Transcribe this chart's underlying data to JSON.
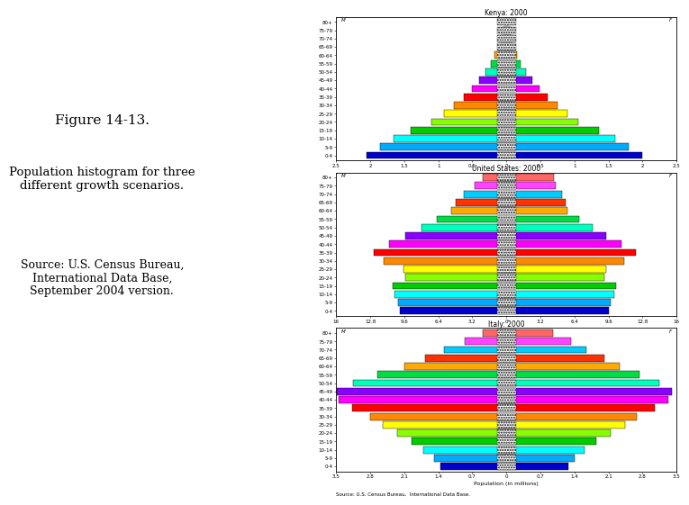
{
  "title1": "Kenya: 2000",
  "title2": "United States: 2000",
  "title3": "Italy: 2000",
  "xlabel": "Population (in millions)",
  "source_text": "Source: U.S. Census Bureau,  International Data Base.",
  "age_groups": [
    "0-4",
    "5-9",
    "10-14",
    "15-19",
    "20-24",
    "25-29",
    "30-34",
    "35-39",
    "40-44",
    "45-49",
    "50-54",
    "55-59",
    "60-64",
    "65-69",
    "70-74",
    "75-79",
    "80+"
  ],
  "bar_colors": [
    "#0000cc",
    "#00aaff",
    "#00ffff",
    "#00cc00",
    "#88ff00",
    "#ffff00",
    "#ff8800",
    "#ff0000",
    "#ff00ff",
    "#8800ff",
    "#00ffbb",
    "#00dd44",
    "#ffaa00",
    "#ff3300",
    "#00ccff",
    "#ff44ff",
    "#ff6666"
  ],
  "kenya_male": [
    2.05,
    1.85,
    1.65,
    1.4,
    1.1,
    0.92,
    0.77,
    0.63,
    0.51,
    0.4,
    0.31,
    0.23,
    0.17,
    0.12,
    0.085,
    0.055,
    0.028
  ],
  "kenya_female": [
    2.0,
    1.8,
    1.6,
    1.36,
    1.06,
    0.9,
    0.75,
    0.6,
    0.49,
    0.38,
    0.29,
    0.21,
    0.16,
    0.115,
    0.085,
    0.06,
    0.04
  ],
  "us_male": [
    10.0,
    10.2,
    10.5,
    10.7,
    9.5,
    9.7,
    11.5,
    12.5,
    11.0,
    9.5,
    8.0,
    6.5,
    5.2,
    4.8,
    4.0,
    3.0,
    2.2
  ],
  "us_female": [
    9.6,
    9.8,
    10.1,
    10.3,
    9.2,
    9.4,
    11.1,
    12.2,
    10.8,
    9.4,
    8.1,
    6.8,
    5.7,
    5.6,
    5.2,
    4.6,
    4.5
  ],
  "italy_male": [
    1.35,
    1.48,
    1.7,
    1.95,
    2.25,
    2.55,
    2.8,
    3.18,
    3.45,
    3.48,
    3.15,
    2.65,
    2.1,
    1.68,
    1.28,
    0.85,
    0.48
  ],
  "italy_female": [
    1.27,
    1.4,
    1.61,
    1.85,
    2.15,
    2.44,
    2.68,
    3.05,
    3.33,
    3.41,
    3.15,
    2.73,
    2.32,
    2.02,
    1.65,
    1.32,
    0.95
  ],
  "kenya_xlim": 2.5,
  "us_xlim": 16.0,
  "italy_xlim": 3.5,
  "background_color": "#ffffff",
  "fig_text_title": "Figure 14-13.",
  "fig_text_body": "Population histogram for three\ndifferent growth scenarios.",
  "fig_text_source": "Source: U.S. Census Bureau,\nInternational Data Base,\nSeptember 2004 version."
}
